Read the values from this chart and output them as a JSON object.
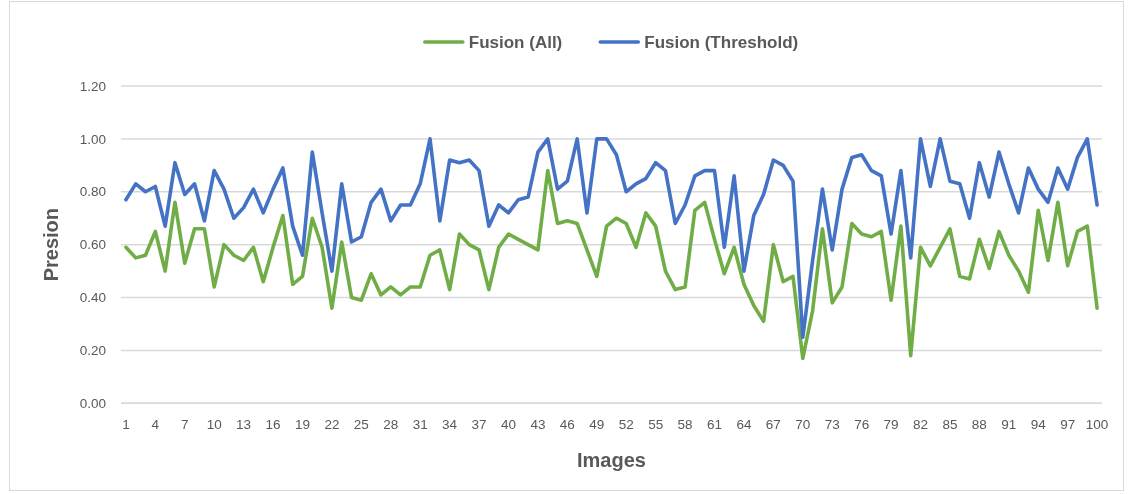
{
  "chart_data": {
    "type": "line",
    "xlabel": "Images",
    "ylabel": "Presion",
    "categories": [
      "1",
      null,
      null,
      "4",
      null,
      null,
      "7",
      null,
      null,
      "10",
      null,
      null,
      "13",
      null,
      null,
      "16",
      null,
      null,
      "19",
      null,
      null,
      "22",
      null,
      null,
      "25",
      null,
      null,
      "28",
      null,
      null,
      "31",
      null,
      null,
      "34",
      null,
      null,
      "37",
      null,
      null,
      "40",
      null,
      null,
      "43",
      null,
      null,
      "46",
      null,
      null,
      "49",
      null,
      null,
      "52",
      null,
      null,
      "55",
      null,
      null,
      "58",
      null,
      null,
      "61",
      null,
      null,
      "64",
      null,
      null,
      "67",
      null,
      null,
      "70",
      null,
      null,
      "73",
      null,
      null,
      "76",
      null,
      null,
      "79",
      null,
      null,
      "82",
      null,
      null,
      "85",
      null,
      null,
      "88",
      null,
      null,
      "91",
      null,
      null,
      "94",
      null,
      null,
      "97",
      null,
      null,
      "100"
    ],
    "series": [
      {
        "name": "Fusion (All)",
        "color": "#70ad47",
        "values": [
          0.59,
          0.55,
          0.56,
          0.65,
          0.5,
          0.76,
          0.53,
          0.66,
          0.66,
          0.44,
          0.6,
          0.56,
          0.54,
          0.59,
          0.46,
          0.59,
          0.71,
          0.45,
          0.48,
          0.7,
          0.59,
          0.36,
          0.61,
          0.4,
          0.39,
          0.49,
          0.41,
          0.44,
          0.41,
          0.44,
          0.44,
          0.56,
          0.58,
          0.43,
          0.64,
          0.6,
          0.58,
          0.43,
          0.59,
          0.64,
          0.62,
          0.6,
          0.58,
          0.88,
          0.68,
          0.69,
          0.68,
          0.58,
          0.48,
          0.67,
          0.7,
          0.68,
          0.59,
          0.72,
          0.67,
          0.5,
          0.43,
          0.44,
          0.73,
          0.76,
          0.62,
          0.49,
          0.59,
          0.45,
          0.37,
          0.31,
          0.6,
          0.46,
          0.48,
          0.17,
          0.35,
          0.66,
          0.38,
          0.44,
          0.68,
          0.64,
          0.63,
          0.65,
          0.39,
          0.67,
          0.18,
          0.59,
          0.52,
          0.59,
          0.66,
          0.48,
          0.47,
          0.62,
          0.51,
          0.65,
          0.56,
          0.5,
          0.42,
          0.73,
          0.54,
          0.76,
          0.52,
          0.65,
          0.67,
          0.36
        ]
      },
      {
        "name": "Fusion (Threshold)",
        "color": "#4472c4",
        "values": [
          0.77,
          0.83,
          0.8,
          0.82,
          0.67,
          0.91,
          0.79,
          0.83,
          0.69,
          0.88,
          0.81,
          0.7,
          0.74,
          0.81,
          0.72,
          0.81,
          0.89,
          0.67,
          0.56,
          0.95,
          0.72,
          0.5,
          0.83,
          0.61,
          0.63,
          0.76,
          0.81,
          0.69,
          0.75,
          0.75,
          0.83,
          1.0,
          0.69,
          0.92,
          0.91,
          0.92,
          0.88,
          0.67,
          0.75,
          0.72,
          0.77,
          0.78,
          0.95,
          1.0,
          0.81,
          0.84,
          1.0,
          0.72,
          1.0,
          1.0,
          0.94,
          0.8,
          0.83,
          0.85,
          0.91,
          0.88,
          0.68,
          0.75,
          0.86,
          0.88,
          0.88,
          0.59,
          0.86,
          0.5,
          0.71,
          0.79,
          0.92,
          0.9,
          0.84,
          0.25,
          0.54,
          0.81,
          0.58,
          0.81,
          0.93,
          0.94,
          0.88,
          0.86,
          0.64,
          0.88,
          0.55,
          1.0,
          0.82,
          1.0,
          0.84,
          0.83,
          0.7,
          0.91,
          0.78,
          0.95,
          0.83,
          0.72,
          0.89,
          0.81,
          0.76,
          0.89,
          0.81,
          0.93,
          1.0,
          0.75
        ]
      }
    ],
    "ylim": [
      0,
      1.2
    ],
    "yticks": [
      {
        "value": 0,
        "label": "0.00"
      },
      {
        "value": 0.2,
        "label": "0.20"
      },
      {
        "value": 0.4,
        "label": "0.40"
      },
      {
        "value": 0.6,
        "label": "0.60"
      },
      {
        "value": 0.8,
        "label": "0.80"
      },
      {
        "value": 1,
        "label": "1.00"
      },
      {
        "value": 1.2,
        "label": "1.20"
      }
    ],
    "grid": "y",
    "legend": "top",
    "line_style": "solid"
  }
}
